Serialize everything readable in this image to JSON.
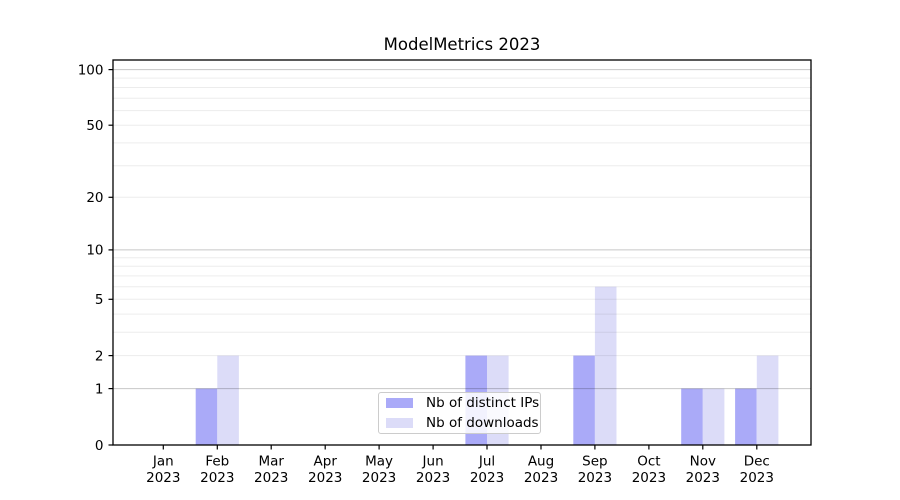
{
  "chart_data": {
    "type": "bar",
    "title": "ModelMetrics 2023",
    "categories": [
      "Jan 2023",
      "Feb 2023",
      "Mar 2023",
      "Apr 2023",
      "May 2023",
      "Jun 2023",
      "Jul 2023",
      "Aug 2023",
      "Sep 2023",
      "Oct 2023",
      "Nov 2023",
      "Dec 2023"
    ],
    "series": [
      {
        "name": "Nb of distinct IPs",
        "color": "#aaaaf8",
        "values": [
          0,
          1,
          0,
          0,
          0,
          0,
          2,
          0,
          2,
          0,
          1,
          1
        ]
      },
      {
        "name": "Nb of downloads",
        "color": "#dcdcf8",
        "values": [
          0,
          2,
          0,
          0,
          0,
          0,
          2,
          0,
          6,
          0,
          1,
          2
        ]
      }
    ],
    "yscale": "log1p",
    "ylim": [
      0,
      113
    ],
    "yticks": [
      0,
      1,
      2,
      5,
      10,
      20,
      50,
      100
    ],
    "gridlines": {
      "major": [
        1,
        10,
        100
      ],
      "minor": [
        2,
        3,
        4,
        5,
        6,
        7,
        8,
        9,
        20,
        30,
        40,
        50,
        60,
        70,
        80,
        90
      ]
    },
    "xlabel": "",
    "ylabel": "",
    "legend_position": "lower center",
    "grid": true
  }
}
